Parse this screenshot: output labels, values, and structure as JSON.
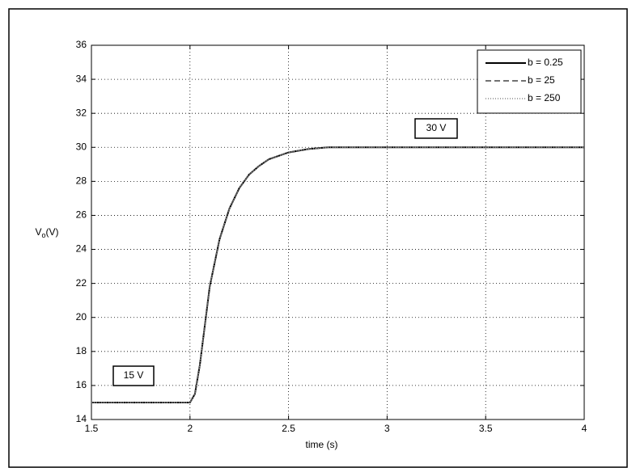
{
  "chart_data": {
    "type": "line",
    "xlabel": "time (s)",
    "ylabel": "Vo(V)",
    "x": [
      1.5,
      2,
      2.025,
      2.05,
      2.075,
      2.1,
      2.15,
      2.2,
      2.25,
      2.3,
      2.35,
      2.4,
      2.5,
      2.6,
      2.7,
      3,
      3.5,
      4
    ],
    "series": [
      {
        "name": "b = 0.25",
        "color": "#000000",
        "linestyle": "solid",
        "values": [
          15,
          15,
          15.5,
          17.2,
          19.5,
          21.8,
          24.6,
          26.4,
          27.6,
          28.4,
          28.9,
          29.3,
          29.7,
          29.9,
          30,
          30,
          30,
          30
        ]
      },
      {
        "name": "b = 25",
        "color": "#444444",
        "linestyle": "dashed",
        "values": [
          15,
          15,
          15.5,
          17.2,
          19.5,
          21.8,
          24.6,
          26.4,
          27.6,
          28.4,
          28.9,
          29.3,
          29.7,
          29.9,
          30,
          30,
          30,
          30
        ]
      },
      {
        "name": "b = 250",
        "color": "#888888",
        "linestyle": "dotted",
        "values": [
          15,
          15,
          15.5,
          17.2,
          19.5,
          21.8,
          24.6,
          26.4,
          27.6,
          28.4,
          28.9,
          29.3,
          29.7,
          29.9,
          30,
          30,
          30,
          30
        ]
      }
    ],
    "annotations": [
      "15 V",
      "30 V"
    ],
    "xlim": [
      1.5,
      4
    ],
    "xticks": [
      1.5,
      2,
      2.5,
      3,
      3.5,
      4
    ],
    "ylim": [
      14,
      36
    ],
    "yticks": [
      14,
      16,
      18,
      20,
      22,
      24,
      26,
      28,
      30,
      32,
      34,
      36
    ],
    "grid": true,
    "legend": "upper right"
  }
}
